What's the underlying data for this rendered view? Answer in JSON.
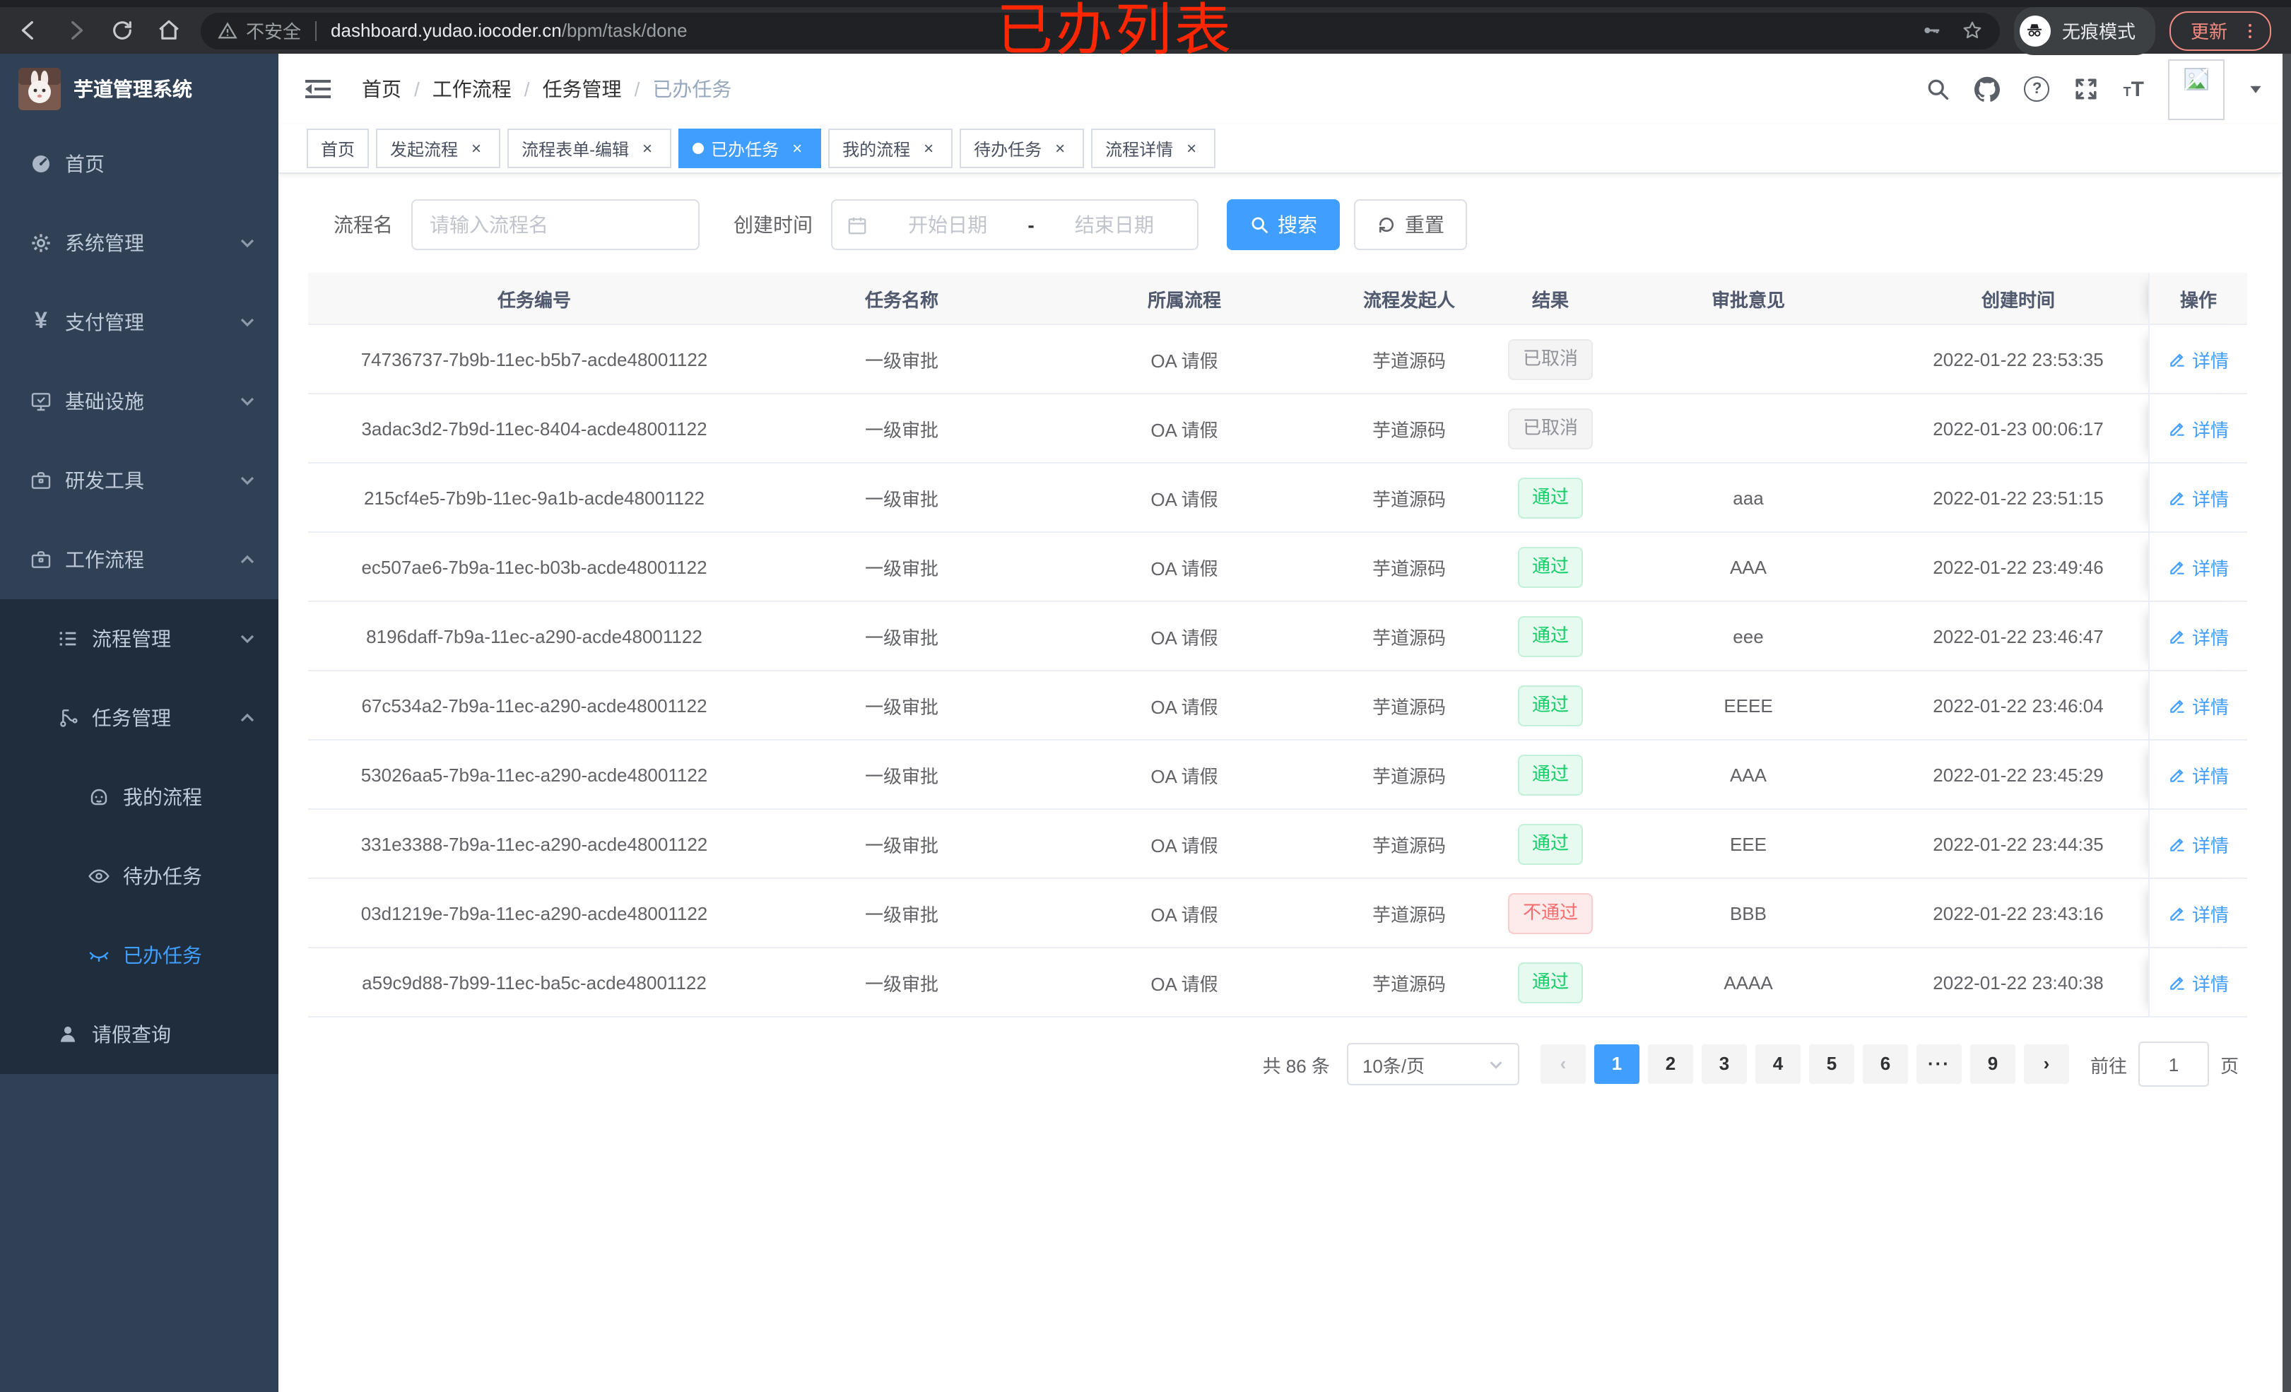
{
  "browser": {
    "security_label": "不安全",
    "url_domain": "dashboard.yudao.iocoder.cn",
    "url_path": "/bpm/task/done",
    "incognito_label": "无痕模式",
    "update_label": "更新"
  },
  "annotation": "已办列表",
  "colors": {
    "accent": "#409eff",
    "success": "#13ce66",
    "danger": "#f56c6c",
    "info": "#909399",
    "sidebar_bg": "#304156",
    "submenu_bg": "#1f2d3d",
    "annotation_red": "#ff2600"
  },
  "sidebar": {
    "logo_title": "芋道管理系统",
    "items": [
      {
        "label": "首页",
        "icon": "dashboard-icon"
      },
      {
        "label": "系统管理",
        "icon": "gear-icon"
      },
      {
        "label": "支付管理",
        "icon": "yen-icon"
      },
      {
        "label": "基础设施",
        "icon": "monitor-check-icon"
      },
      {
        "label": "研发工具",
        "icon": "briefcase-icon"
      },
      {
        "label": "工作流程",
        "icon": "briefcase-icon"
      },
      {
        "label": "流程管理",
        "icon": "list-icon"
      },
      {
        "label": "任务管理",
        "icon": "branch-icon"
      },
      {
        "label": "我的流程",
        "icon": "robot-icon"
      },
      {
        "label": "待办任务",
        "icon": "eye-icon"
      },
      {
        "label": "已办任务",
        "icon": "eye-closed-icon"
      },
      {
        "label": "请假查询",
        "icon": "user-icon"
      }
    ]
  },
  "breadcrumb": [
    "首页",
    "工作流程",
    "任务管理",
    "已办任务"
  ],
  "tabs": [
    {
      "label": "首页",
      "closable": false,
      "active": false
    },
    {
      "label": "发起流程",
      "closable": true,
      "active": false
    },
    {
      "label": "流程表单-编辑",
      "closable": true,
      "active": false
    },
    {
      "label": "已办任务",
      "closable": true,
      "active": true
    },
    {
      "label": "我的流程",
      "closable": true,
      "active": false
    },
    {
      "label": "待办任务",
      "closable": true,
      "active": false
    },
    {
      "label": "流程详情",
      "closable": true,
      "active": false
    }
  ],
  "filters": {
    "name_label": "流程名",
    "name_placeholder": "请输入流程名",
    "time_label": "创建时间",
    "start_placeholder": "开始日期",
    "range_separator": "-",
    "end_placeholder": "结束日期",
    "search_label": "搜索",
    "reset_label": "重置"
  },
  "table": {
    "columns": [
      "任务编号",
      "任务名称",
      "所属流程",
      "流程发起人",
      "结果",
      "审批意见",
      "创建时间",
      "操作"
    ],
    "detail_label": "详情",
    "rows": [
      {
        "id": "74736737-7b9b-11ec-b5b7-acde48001122",
        "name": "一级审批",
        "process": "OA 请假",
        "starter": "芋道源码",
        "result": "已取消",
        "result_type": "info",
        "opinion": "",
        "created": "2022-01-22 23:53:35"
      },
      {
        "id": "3adac3d2-7b9d-11ec-8404-acde48001122",
        "name": "一级审批",
        "process": "OA 请假",
        "starter": "芋道源码",
        "result": "已取消",
        "result_type": "info",
        "opinion": "",
        "created": "2022-01-23 00:06:17"
      },
      {
        "id": "215cf4e5-7b9b-11ec-9a1b-acde48001122",
        "name": "一级审批",
        "process": "OA 请假",
        "starter": "芋道源码",
        "result": "通过",
        "result_type": "success",
        "opinion": "aaa",
        "created": "2022-01-22 23:51:15"
      },
      {
        "id": "ec507ae6-7b9a-11ec-b03b-acde48001122",
        "name": "一级审批",
        "process": "OA 请假",
        "starter": "芋道源码",
        "result": "通过",
        "result_type": "success",
        "opinion": "AAA",
        "created": "2022-01-22 23:49:46"
      },
      {
        "id": "8196daff-7b9a-11ec-a290-acde48001122",
        "name": "一级审批",
        "process": "OA 请假",
        "starter": "芋道源码",
        "result": "通过",
        "result_type": "success",
        "opinion": "eee",
        "created": "2022-01-22 23:46:47"
      },
      {
        "id": "67c534a2-7b9a-11ec-a290-acde48001122",
        "name": "一级审批",
        "process": "OA 请假",
        "starter": "芋道源码",
        "result": "通过",
        "result_type": "success",
        "opinion": "EEEE",
        "created": "2022-01-22 23:46:04"
      },
      {
        "id": "53026aa5-7b9a-11ec-a290-acde48001122",
        "name": "一级审批",
        "process": "OA 请假",
        "starter": "芋道源码",
        "result": "通过",
        "result_type": "success",
        "opinion": "AAA",
        "created": "2022-01-22 23:45:29"
      },
      {
        "id": "331e3388-7b9a-11ec-a290-acde48001122",
        "name": "一级审批",
        "process": "OA 请假",
        "starter": "芋道源码",
        "result": "通过",
        "result_type": "success",
        "opinion": "EEE",
        "created": "2022-01-22 23:44:35"
      },
      {
        "id": "03d1219e-7b9a-11ec-a290-acde48001122",
        "name": "一级审批",
        "process": "OA 请假",
        "starter": "芋道源码",
        "result": "不通过",
        "result_type": "danger",
        "opinion": "BBB",
        "created": "2022-01-22 23:43:16"
      },
      {
        "id": "a59c9d88-7b99-11ec-ba5c-acde48001122",
        "name": "一级审批",
        "process": "OA 请假",
        "starter": "芋道源码",
        "result": "通过",
        "result_type": "success",
        "opinion": "AAAA",
        "created": "2022-01-22 23:40:38"
      }
    ]
  },
  "pagination": {
    "total_text": "共 86 条",
    "page_size": "10条/页",
    "pages": [
      "1",
      "2",
      "3",
      "4",
      "5",
      "6",
      "···",
      "9"
    ],
    "active_page": "1",
    "goto_label": "前往",
    "goto_value": "1",
    "unit_label": "页"
  }
}
